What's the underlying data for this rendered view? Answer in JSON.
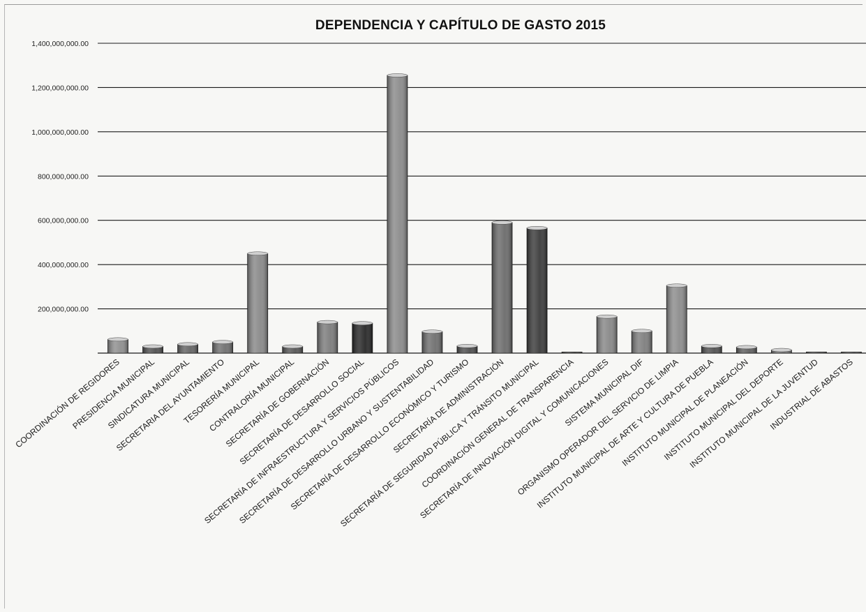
{
  "chart_data": {
    "type": "bar",
    "title": "DEPENDENCIA Y CAPÍTULO DE GASTO 2015",
    "xlabel": "",
    "ylabel": "",
    "ylim": [
      0,
      1400000000
    ],
    "yticks": [
      "1,400,000,000.00",
      "1,200,000,000.00",
      "1,000,000,000.00",
      "800,000,000.00",
      "600,000,000.00",
      "400,000,000.00",
      "200,000,000.00"
    ],
    "grid": true,
    "legend": "none",
    "categories": [
      "COORDINACIÓN DE REGIDORES",
      "PRESIDENCIA MUNICIPAL",
      "SINDICATURA MUNICIPAL",
      "SECRETARIA DEL AYUNTAMIENTO",
      "TESORERÍA MUNICIPAL",
      "CONTRALORÍA MUNICIPAL",
      "SECRETARÍA DE GOBERNACIÓN",
      "SECRETARÍA DE DESARROLLO SOCIAL",
      "SECRETARÍA DE INFRAESTRUCTURA Y SERVICIOS PÚBLICOS",
      "SECRETARÍA DE DESARROLLO URBANO Y SUSTENTABILIDAD",
      "SECRETARÍA DE DESARROLLO ECONÓMICO Y TURISMO",
      "SECRETARÍA DE ADMINISTRACIÓN",
      "SECRETARÍA DE SEGURIDAD PÚBLICA Y TRÁNSITO MUNICIPAL",
      "COORDINACIÓN GENERAL DE TRANSPARENCIA",
      "SECRETARÍA DE INNOVACIÓN DIGITAL Y COMUNICACIONES",
      "SISTEMA MUNICIPAL DIF",
      "ORGANISMO OPERADOR DEL SERVICIO DE LIMPIA",
      "INSTITUTO MUNICIPAL DE ARTE Y CULTURA DE PUEBLA",
      "INSTITUTO MUNICIPAL DE PLANEACIÓN",
      "INSTITUTO MUNICIPAL DEL DEPORTE",
      "INSTITUTO MUNICIPAL DE LA JUVENTUD",
      "INDUSTRIAL DE ABASTOS"
    ],
    "values": [
      62000000,
      30000000,
      40000000,
      50000000,
      450000000,
      30000000,
      140000000,
      135000000,
      1255000000,
      97000000,
      32000000,
      590000000,
      565000000,
      3000000,
      165000000,
      100000000,
      305000000,
      32000000,
      27000000,
      14000000,
      5000000,
      3000000
    ],
    "colors": [
      "#8e8e8e",
      "#505050",
      "#636363",
      "#6f6f6f",
      "#888888",
      "#555555",
      "#7b7b7b",
      "#262626",
      "#8a8a8a",
      "#6e6e6e",
      "#4d4d4d",
      "#6a6a6a",
      "#3a3a3a",
      "#444444",
      "#878787",
      "#7d7d7d",
      "#8c8c8c",
      "#505050",
      "#5e5e5e",
      "#7a7a7a",
      "#666666",
      "#5a5a5a"
    ]
  }
}
